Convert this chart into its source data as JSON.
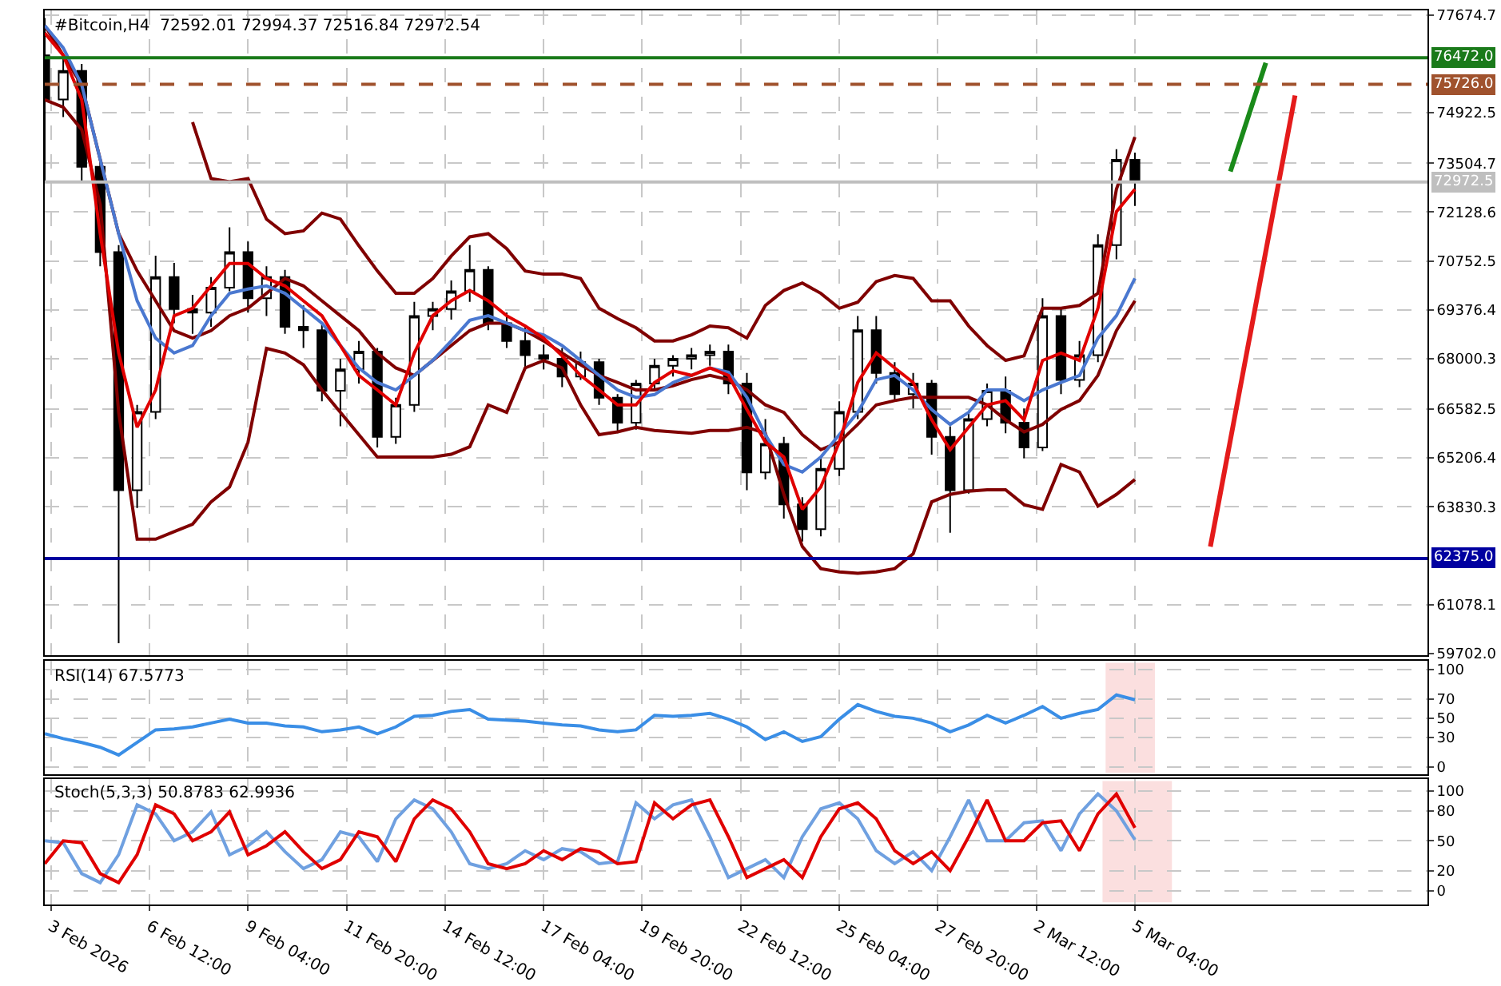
{
  "chart_data": [
    {
      "type": "candlestick",
      "title": "#Bitcoin,H4  72592.01 72994.37 72516.84 72972.54",
      "x": [
        "2026-02-03T16:00",
        "2026-02-04T04:00",
        "2026-02-04T16:00",
        "2026-02-05T04:00",
        "2026-02-05T16:00",
        "2026-02-06T04:00",
        "2026-02-06T16:00",
        "2026-02-07T04:00",
        "2026-02-07T16:00",
        "2026-02-08T04:00",
        "2026-02-08T16:00",
        "2026-02-09T04:00",
        "2026-02-09T16:00",
        "2026-02-10T04:00",
        "2026-02-10T16:00",
        "2026-02-11T04:00",
        "2026-02-11T16:00",
        "2026-02-12T04:00",
        "2026-02-12T16:00",
        "2026-02-13T04:00",
        "2026-02-13T16:00",
        "2026-02-14T04:00",
        "2026-02-14T16:00",
        "2026-02-15T04:00",
        "2026-02-15T16:00",
        "2026-02-16T04:00",
        "2026-02-16T16:00",
        "2026-02-17T04:00",
        "2026-02-17T16:00",
        "2026-02-18T04:00",
        "2026-02-18T16:00",
        "2026-02-19T04:00",
        "2026-02-19T16:00",
        "2026-02-20T04:00",
        "2026-02-20T16:00",
        "2026-02-21T04:00",
        "2026-02-21T16:00",
        "2026-02-22T04:00",
        "2026-02-22T16:00",
        "2026-02-23T04:00",
        "2026-02-23T16:00",
        "2026-02-24T04:00",
        "2026-02-24T16:00",
        "2026-02-25T04:00",
        "2026-02-25T16:00",
        "2026-02-26T04:00",
        "2026-02-26T16:00",
        "2026-02-27T04:00",
        "2026-02-27T16:00",
        "2026-02-28T04:00",
        "2026-02-28T16:00",
        "2026-03-01T04:00",
        "2026-03-01T16:00",
        "2026-03-02T04:00",
        "2026-03-02T16:00",
        "2026-03-03T04:00",
        "2026-03-03T16:00",
        "2026-03-04T04:00",
        "2026-03-04T16:00",
        "2026-03-05T04:00"
      ],
      "ohlc": [
        [
          76540,
          77590,
          73000,
          75300
        ],
        [
          75300,
          76500,
          74800,
          76100
        ],
        [
          76100,
          76300,
          73000,
          73400
        ],
        [
          73400,
          73600,
          70600,
          71000
        ],
        [
          71000,
          71200,
          59990,
          64300
        ],
        [
          64300,
          66700,
          63800,
          66500
        ],
        [
          66500,
          70900,
          66300,
          70300
        ],
        [
          70300,
          70700,
          69000,
          69400
        ],
        [
          69400,
          69800,
          68700,
          69300
        ],
        [
          69300,
          70300,
          68900,
          70000
        ],
        [
          70000,
          71700,
          69900,
          71000
        ],
        [
          71000,
          71300,
          69300,
          69700
        ],
        [
          69700,
          70600,
          69200,
          70300
        ],
        [
          70300,
          70500,
          68700,
          68900
        ],
        [
          68900,
          69500,
          68300,
          68800
        ],
        [
          68800,
          69000,
          66800,
          67100
        ],
        [
          67100,
          68000,
          66100,
          67700
        ],
        [
          67700,
          68500,
          67300,
          68200
        ],
        [
          68200,
          68300,
          65500,
          65800
        ],
        [
          65800,
          66900,
          65600,
          66700
        ],
        [
          66700,
          69600,
          66500,
          69200
        ],
        [
          69200,
          69600,
          68800,
          69400
        ],
        [
          69400,
          70200,
          69100,
          69900
        ],
        [
          69900,
          71200,
          69600,
          70500
        ],
        [
          70500,
          70600,
          68800,
          69000
        ],
        [
          69000,
          69300,
          68300,
          68500
        ],
        [
          68500,
          68900,
          67700,
          68100
        ],
        [
          68100,
          68400,
          67700,
          68000
        ],
        [
          68000,
          68300,
          67200,
          67500
        ],
        [
          67500,
          68200,
          67400,
          67900
        ],
        [
          67900,
          68000,
          66700,
          66900
        ],
        [
          66900,
          67000,
          65900,
          66200
        ],
        [
          66200,
          67400,
          66000,
          67300
        ],
        [
          67300,
          68000,
          67100,
          67800
        ],
        [
          67800,
          68100,
          67500,
          68000
        ],
        [
          68000,
          68300,
          67700,
          68100
        ],
        [
          68100,
          68400,
          67800,
          68200
        ],
        [
          68200,
          68400,
          67000,
          67300
        ],
        [
          67300,
          67600,
          64300,
          64800
        ],
        [
          64800,
          66300,
          64600,
          65600
        ],
        [
          65600,
          65800,
          63500,
          63900
        ],
        [
          63900,
          64100,
          62850,
          63200
        ],
        [
          63200,
          65200,
          63000,
          64900
        ],
        [
          64900,
          66800,
          64700,
          66500
        ],
        [
          66500,
          69200,
          66300,
          68800
        ],
        [
          68800,
          69200,
          67300,
          67600
        ],
        [
          67600,
          67900,
          66800,
          67000
        ],
        [
          67000,
          67600,
          66600,
          67300
        ],
        [
          67300,
          67400,
          65300,
          65800
        ],
        [
          65800,
          66100,
          63100,
          64300
        ],
        [
          64300,
          66500,
          64200,
          66300
        ],
        [
          66300,
          67300,
          66100,
          67100
        ],
        [
          67100,
          67500,
          65900,
          66200
        ],
        [
          66200,
          66600,
          65200,
          65500
        ],
        [
          65500,
          69700,
          65400,
          69200
        ],
        [
          69200,
          69400,
          67000,
          67400
        ],
        [
          67400,
          68500,
          67200,
          68100
        ],
        [
          68100,
          71500,
          67900,
          71200
        ],
        [
          71200,
          73900,
          70800,
          73600
        ],
        [
          73600,
          73800,
          72300,
          72970
        ]
      ],
      "series": [
        {
          "type": "line",
          "color": "#800000",
          "values": [
            null,
            null,
            null,
            null,
            null,
            null,
            null,
            null,
            74660,
            73070,
            72980,
            73070,
            71930,
            71520,
            71600,
            72100,
            71930,
            71180,
            70470,
            69840,
            69840,
            70260,
            70890,
            71430,
            71520,
            71100,
            70470,
            70380,
            70380,
            70260,
            69420,
            69130,
            68870,
            68500,
            68500,
            68670,
            68920,
            68870,
            68580,
            69500,
            69920,
            70130,
            69840,
            69420,
            69590,
            70170,
            70340,
            70260,
            69630,
            69630,
            68920,
            68370,
            67950,
            68080,
            69420,
            69420,
            69500,
            69840,
            72770,
            74240
          ]
        },
        {
          "type": "line",
          "color": "#800000",
          "values": [
            77380,
            76540,
            75710,
            73610,
            71520,
            70470,
            69630,
            68790,
            68580,
            68790,
            69210,
            69420,
            69840,
            70260,
            70050,
            69630,
            69210,
            68790,
            68160,
            67740,
            67530,
            67950,
            68370,
            68790,
            69000,
            69000,
            68790,
            68500,
            68160,
            67830,
            67530,
            67330,
            67120,
            67120,
            67240,
            67410,
            67530,
            67410,
            67120,
            66700,
            66490,
            65860,
            65440,
            65650,
            66150,
            66700,
            66820,
            66910,
            66910,
            66910,
            66910,
            66700,
            66280,
            65940,
            66150,
            66570,
            66820,
            67530,
            68790,
            69630
          ]
        },
        {
          "type": "line",
          "color": "#800000",
          "values": [
            75290,
            75080,
            74450,
            72350,
            66490,
            62920,
            62920,
            63130,
            63340,
            63970,
            64390,
            65650,
            68290,
            68160,
            67830,
            67120,
            66490,
            65860,
            65230,
            65230,
            65230,
            65230,
            65310,
            65520,
            66700,
            66490,
            67740,
            67950,
            67740,
            66700,
            65860,
            65940,
            66070,
            65980,
            65940,
            65900,
            65980,
            65980,
            66070,
            65900,
            64180,
            62710,
            62090,
            62000,
            61960,
            62000,
            62090,
            62510,
            63970,
            64180,
            64270,
            64310,
            64310,
            63890,
            63760,
            65020,
            64810,
            63850,
            64180,
            64600
          ]
        },
        {
          "type": "line",
          "color": "#4a78d0",
          "values": [
            77380,
            76750,
            75710,
            73610,
            71520,
            69630,
            68580,
            68160,
            68370,
            69210,
            69840,
            69960,
            70050,
            69840,
            69420,
            69000,
            68370,
            67740,
            67330,
            67120,
            67530,
            67950,
            68500,
            69080,
            69210,
            69000,
            68790,
            68670,
            68370,
            67950,
            67530,
            67120,
            66910,
            66990,
            67330,
            67530,
            67740,
            67620,
            66910,
            65860,
            65020,
            64810,
            65230,
            65860,
            66490,
            67410,
            67530,
            67120,
            66570,
            66150,
            66490,
            67120,
            67120,
            66820,
            67120,
            67330,
            67530,
            68580,
            69210,
            70260
          ]
        },
        {
          "type": "line",
          "color": "#e00000",
          "values": [
            77170,
            76540,
            75290,
            71520,
            68160,
            66070,
            67120,
            69210,
            69420,
            70050,
            70680,
            70680,
            70260,
            70050,
            69630,
            69210,
            68370,
            67530,
            67120,
            66700,
            68160,
            69210,
            69630,
            69920,
            69630,
            69210,
            68920,
            68580,
            68080,
            67530,
            67120,
            66700,
            66700,
            67330,
            67660,
            67530,
            67740,
            67530,
            66570,
            65650,
            65230,
            63760,
            64390,
            65650,
            67330,
            68160,
            67740,
            67330,
            66280,
            65440,
            66070,
            66700,
            66820,
            66280,
            67950,
            68160,
            67950,
            69420,
            72140,
            72770
          ]
        },
        {
          "type": "line",
          "color": "#1a8a1a",
          "x": [
            "2026-03-07T18:00",
            "2026-03-08T17:00"
          ],
          "values": [
            73270,
            76330
          ]
        },
        {
          "type": "line",
          "color": "#e41b1b",
          "x": [
            "2026-03-09T12:00",
            "2026-03-07T05:00"
          ],
          "values": [
            75410,
            62710
          ]
        }
      ],
      "xlim": [
        "2026-02-03T16:00",
        "2026-03-13T02:00"
      ],
      "ylim": [
        59660,
        77800
      ],
      "yticks": [
        77674.7,
        74922.5,
        73504.7,
        72128.6,
        70752.5,
        69376.4,
        68000.3,
        66582.5,
        65206.4,
        63830.3,
        61078.1,
        {
          "value": 59702,
          "label": "59702.0"
        }
      ],
      "ref_lines": [
        {
          "axis": "y",
          "value": 76472,
          "label": "76472.0",
          "color": "#1a7a1a",
          "line_style": "solid"
        },
        {
          "axis": "y",
          "value": 75726,
          "label": "75726.0",
          "color": "#a0522d",
          "line_style": "dashed"
        },
        {
          "axis": "y",
          "value": 72972.5,
          "label": "72972.5",
          "color": "#bfbfbf",
          "line_style": "solid"
        },
        {
          "axis": "y",
          "value": 62375,
          "label": "62375.0",
          "color": "#0000a0",
          "line_style": "solid"
        }
      ],
      "grid": true,
      "tick_labels": "y"
    },
    {
      "type": "line",
      "title": "RSI(14) 67.5773",
      "x": [
        "2026-02-03T16:00",
        "2026-02-04T04:00",
        "2026-02-04T16:00",
        "2026-02-05T04:00",
        "2026-02-05T16:00",
        "2026-02-06T04:00",
        "2026-02-06T16:00",
        "2026-02-07T04:00",
        "2026-02-07T16:00",
        "2026-02-08T04:00",
        "2026-02-08T16:00",
        "2026-02-09T04:00",
        "2026-02-09T16:00",
        "2026-02-10T04:00",
        "2026-02-10T16:00",
        "2026-02-11T04:00",
        "2026-02-11T16:00",
        "2026-02-12T04:00",
        "2026-02-12T16:00",
        "2026-02-13T04:00",
        "2026-02-13T16:00",
        "2026-02-14T04:00",
        "2026-02-14T16:00",
        "2026-02-15T04:00",
        "2026-02-15T16:00",
        "2026-02-16T04:00",
        "2026-02-16T16:00",
        "2026-02-17T04:00",
        "2026-02-17T16:00",
        "2026-02-18T04:00",
        "2026-02-18T16:00",
        "2026-02-19T04:00",
        "2026-02-19T16:00",
        "2026-02-20T04:00",
        "2026-02-20T16:00",
        "2026-02-21T04:00",
        "2026-02-21T16:00",
        "2026-02-22T04:00",
        "2026-02-22T16:00",
        "2026-02-23T04:00",
        "2026-02-23T16:00",
        "2026-02-24T04:00",
        "2026-02-24T16:00",
        "2026-02-25T04:00",
        "2026-02-25T16:00",
        "2026-02-26T04:00",
        "2026-02-26T16:00",
        "2026-02-27T04:00",
        "2026-02-27T16:00",
        "2026-02-28T04:00",
        "2026-02-28T16:00",
        "2026-03-01T04:00",
        "2026-03-01T16:00",
        "2026-03-02T04:00",
        "2026-03-02T16:00",
        "2026-03-03T04:00",
        "2026-03-03T16:00",
        "2026-03-04T04:00",
        "2026-03-04T16:00",
        "2026-03-05T04:00"
      ],
      "series": [
        {
          "color": "#3a8ee6",
          "values": [
            34,
            29,
            25,
            20,
            12,
            25,
            38,
            39,
            41,
            45,
            49,
            45,
            45,
            42,
            41,
            36,
            38,
            41,
            34,
            41,
            52,
            53,
            57,
            59,
            49,
            48,
            47,
            45,
            43,
            42,
            38,
            36,
            38,
            53,
            52,
            53,
            55,
            49,
            41,
            28,
            36,
            26,
            31,
            49,
            64,
            57,
            52,
            50,
            45,
            36,
            43,
            53,
            45,
            53,
            62,
            50,
            55,
            59,
            74,
            69
          ]
        }
      ],
      "xlim": [
        "2026-02-03T16:00",
        "2026-03-13T02:00"
      ],
      "ylim": [
        -8,
        109
      ],
      "yticks": [
        100,
        70,
        50,
        30,
        0
      ],
      "bands": [
        {
          "axis": "x",
          "from": "2026-03-04T10:00",
          "to": "2026-03-05T16:00",
          "color": "#e00000"
        }
      ],
      "grid": true,
      "tick_labels": "y"
    },
    {
      "type": "line",
      "title": "Stoch(5,3,3) 50.8783 62.9936",
      "x": [
        "2026-02-03T16:00",
        "2026-02-04T04:00",
        "2026-02-04T16:00",
        "2026-02-05T04:00",
        "2026-02-05T16:00",
        "2026-02-06T04:00",
        "2026-02-06T16:00",
        "2026-02-07T04:00",
        "2026-02-07T16:00",
        "2026-02-08T04:00",
        "2026-02-08T16:00",
        "2026-02-09T04:00",
        "2026-02-09T16:00",
        "2026-02-10T04:00",
        "2026-02-10T16:00",
        "2026-02-11T04:00",
        "2026-02-11T16:00",
        "2026-02-12T04:00",
        "2026-02-12T16:00",
        "2026-02-13T04:00",
        "2026-02-13T16:00",
        "2026-02-14T04:00",
        "2026-02-14T16:00",
        "2026-02-15T04:00",
        "2026-02-15T16:00",
        "2026-02-16T04:00",
        "2026-02-16T16:00",
        "2026-02-17T04:00",
        "2026-02-17T16:00",
        "2026-02-18T04:00",
        "2026-02-18T16:00",
        "2026-02-19T04:00",
        "2026-02-19T16:00",
        "2026-02-20T04:00",
        "2026-02-20T16:00",
        "2026-02-21T04:00",
        "2026-02-21T16:00",
        "2026-02-22T04:00",
        "2026-02-22T16:00",
        "2026-02-23T04:00",
        "2026-02-23T16:00",
        "2026-02-24T04:00",
        "2026-02-24T16:00",
        "2026-02-25T04:00",
        "2026-02-25T16:00",
        "2026-02-26T04:00",
        "2026-02-26T16:00",
        "2026-02-27T04:00",
        "2026-02-27T16:00",
        "2026-02-28T04:00",
        "2026-02-28T16:00",
        "2026-03-01T04:00",
        "2026-03-01T16:00",
        "2026-03-02T04:00",
        "2026-03-02T16:00",
        "2026-03-03T04:00",
        "2026-03-03T16:00",
        "2026-03-04T04:00",
        "2026-03-04T16:00",
        "2026-03-05T04:00"
      ],
      "series": [
        {
          "color": "#6fa0e0",
          "values": [
            50,
            48,
            17,
            8,
            36,
            86,
            77,
            50,
            59,
            79,
            36,
            45,
            59,
            39,
            22,
            31,
            59,
            54,
            29,
            72,
            91,
            82,
            59,
            27,
            22,
            27,
            40,
            31,
            42,
            39,
            27,
            29,
            88,
            72,
            86,
            91,
            54,
            13,
            22,
            31,
            13,
            54,
            82,
            88,
            72,
            40,
            27,
            39,
            20,
            54,
            91,
            50,
            50,
            68,
            70,
            40,
            77,
            97,
            80,
            51
          ]
        },
        {
          "color": "#e00000",
          "values": [
            27,
            50,
            48,
            17,
            8,
            36,
            86,
            77,
            50,
            59,
            79,
            36,
            45,
            59,
            39,
            22,
            31,
            59,
            54,
            29,
            72,
            91,
            82,
            59,
            27,
            22,
            27,
            40,
            31,
            42,
            39,
            27,
            29,
            88,
            72,
            86,
            91,
            54,
            13,
            22,
            31,
            13,
            54,
            82,
            88,
            72,
            40,
            27,
            39,
            20,
            54,
            91,
            50,
            50,
            68,
            70,
            40,
            77,
            97,
            63
          ]
        }
      ],
      "xlim": [
        "2026-02-03T16:00",
        "2026-03-13T02:00"
      ],
      "xticks": [
        {
          "value": "2026-02-03T20:00",
          "label": "3 Feb 2026"
        },
        {
          "value": "2026-02-06T12:00",
          "label": "6 Feb 12:00"
        },
        {
          "value": "2026-02-09T04:00",
          "label": "9 Feb 04:00"
        },
        {
          "value": "2026-02-11T20:00",
          "label": "11 Feb 20:00"
        },
        {
          "value": "2026-02-14T12:00",
          "label": "14 Feb 12:00"
        },
        {
          "value": "2026-02-17T04:00",
          "label": "17 Feb 04:00"
        },
        {
          "value": "2026-02-19T20:00",
          "label": "19 Feb 20:00"
        },
        {
          "value": "2026-02-22T12:00",
          "label": "22 Feb 12:00"
        },
        {
          "value": "2026-02-25T04:00",
          "label": "25 Feb 04:00"
        },
        {
          "value": "2026-02-27T20:00",
          "label": "27 Feb 20:00"
        },
        {
          "value": "2026-03-02T12:00",
          "label": "2 Mar 12:00"
        },
        {
          "value": "2026-03-05T04:00",
          "label": "5 Mar 04:00"
        }
      ],
      "ylim": [
        -14,
        112
      ],
      "yticks": [
        100,
        80,
        50,
        20,
        0
      ],
      "bands": [
        {
          "axis": "x",
          "from": "2026-03-04T08:00",
          "to": "2026-03-06T03:00",
          "color": "#e00000"
        }
      ],
      "grid": true
    }
  ]
}
